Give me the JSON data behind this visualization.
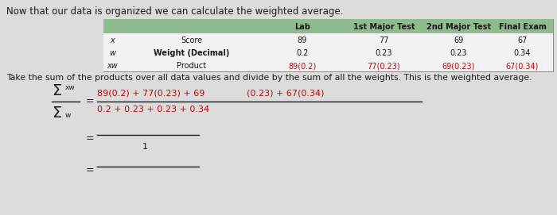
{
  "title": "Now that our data is organized we can calculate the weighted average.",
  "subtitle": "Take the sum of the products over all data values and divide by the sum of all the weights. This is the weighted average.",
  "bg_color": "#dcdcdc",
  "header_bg": "#8fbc8f",
  "row_labels": [
    "x",
    "w",
    "xw"
  ],
  "row_desc": [
    "Score",
    "Weight (Decimal)",
    "Product"
  ],
  "col_headers": [
    "Lab",
    "1st Major Test",
    "2nd Major Test",
    "Final Exam"
  ],
  "scores": [
    "89",
    "77",
    "69",
    "67"
  ],
  "weights": [
    "0.2",
    "0.23",
    "0.23",
    "0.34"
  ],
  "products": [
    "89(0.2)",
    "77(0.23)",
    "69(0.23)",
    "67(0.34)"
  ],
  "numerator_line1": "89(0.2) + 77(0.23) + 69",
  "numerator_line2": "(0.23) + 67(0.34)",
  "denominator": "0.2 + 0.23 + 0.23 + 0.34",
  "fraction_bottom": "1",
  "font_color": "#1a1a1a",
  "red_color": "#cc0000",
  "line_color": "#888888",
  "header_text_color": "#1a1a1a",
  "row_bg_color": "#f2f2f2"
}
